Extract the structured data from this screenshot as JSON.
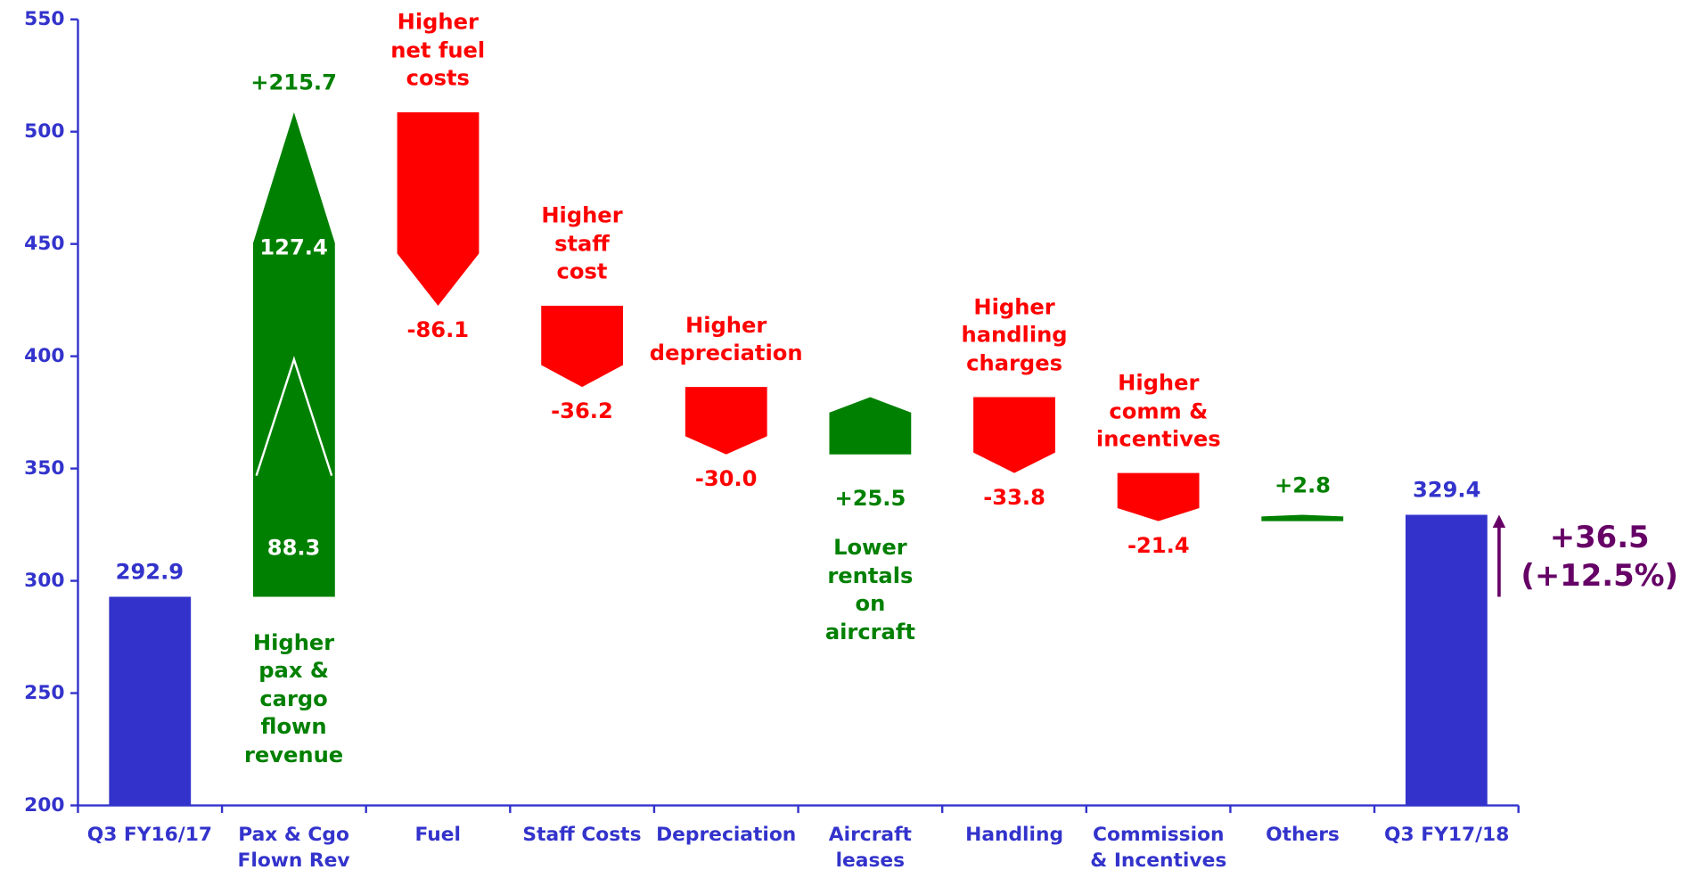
{
  "chart_data": {
    "type": "waterfall",
    "categories": [
      "Q3 FY16/17",
      "Pax & Cgo\nFlown Rev",
      "Fuel",
      "Staff Costs",
      "Depreciation",
      "Aircraft\nleases",
      "Handling",
      "Commission\n& Incentives",
      "Others",
      "Q3 FY17/18"
    ],
    "measures": [
      "absolute",
      "relative",
      "relative",
      "relative",
      "relative",
      "relative",
      "relative",
      "relative",
      "relative",
      "total"
    ],
    "values": [
      292.9,
      215.7,
      -86.1,
      -36.2,
      -30.0,
      25.5,
      -33.8,
      -21.4,
      2.8,
      329.4
    ],
    "value_labels": [
      "292.9",
      "+215.7",
      "-86.1",
      "-36.2",
      "-30.0",
      "+25.5",
      "-33.8",
      "-21.4",
      "+2.8",
      "329.4"
    ],
    "components": [
      127.4,
      88.3
    ],
    "annotations": [
      null,
      "Higher\npax &\ncargo\nflown\nrevenue",
      "Higher\nnet fuel\ncosts",
      "Higher\nstaff\ncost",
      "Higher\ndepreciation",
      "Lower\nrentals\non\naircraft",
      "Higher\nhandling\ncharges",
      "Higher\ncomm &\nincentives",
      null,
      null
    ],
    "total_change": {
      "label": "+36.5",
      "pct_label": "(+12.5%)"
    },
    "colors": {
      "total": "#3333cc",
      "increase": "#008000",
      "decrease": "#ff0000",
      "change": "#660066"
    },
    "ylim": [
      200,
      550
    ],
    "yticks": [
      200,
      250,
      300,
      350,
      400,
      450,
      500,
      550
    ]
  }
}
